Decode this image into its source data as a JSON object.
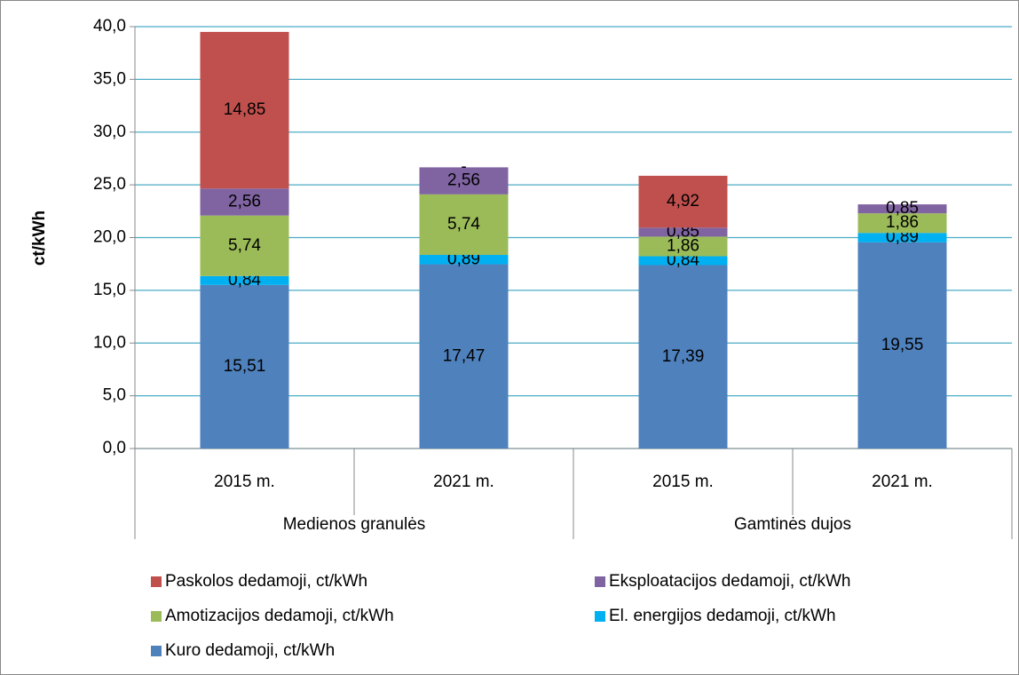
{
  "chart_data": {
    "type": "stacked_bar",
    "y_label": "ct/kWh",
    "categories": [
      "2015 m.",
      "2021 m.",
      "2015 m.",
      "2021 m."
    ],
    "groups": [
      "Medienos granulės",
      "Gamtinės dujos"
    ],
    "series": [
      {
        "name": "Kuro dedamoji, ct/kWh",
        "color": "#4f81bd",
        "values": [
          15.51,
          17.47,
          17.39,
          19.55
        ],
        "value_labels": [
          "15,51",
          "17,47",
          "17,39",
          "19,55"
        ]
      },
      {
        "name": "El. energijos dedamoji, ct/kWh",
        "color": "#00b0f0",
        "values": [
          0.84,
          0.89,
          0.84,
          0.89
        ],
        "value_labels": [
          "0,84",
          "0,89",
          "0,84",
          "0,89"
        ]
      },
      {
        "name": "Amotizacijos dedamoji, ct/kWh",
        "color": "#9bbb59",
        "values": [
          5.74,
          5.74,
          1.86,
          1.86
        ],
        "value_labels": [
          "5,74",
          "5,74",
          "1,86",
          "1,86"
        ]
      },
      {
        "name": "Eksploatacijos dedamoji, ct/kWh",
        "color": "#8064a2",
        "values": [
          2.56,
          2.56,
          0.85,
          0.85
        ],
        "value_labels": [
          "2,56",
          "2,56",
          "0,85",
          "0,85"
        ]
      },
      {
        "name": "Paskolos dedamoji, ct/kWh",
        "color": "#c0504d",
        "values": [
          14.85,
          0,
          4.92,
          null
        ],
        "value_labels": [
          "14,85",
          "-",
          "4,92",
          null
        ]
      }
    ],
    "legend_order": [
      4,
      3,
      2,
      1,
      0
    ],
    "ylim": [
      0,
      40
    ],
    "yticks": [
      {
        "value": 0,
        "label": "0,0"
      },
      {
        "value": 5,
        "label": "5,0"
      },
      {
        "value": 10,
        "label": "10,0"
      },
      {
        "value": 15,
        "label": "15,0"
      },
      {
        "value": 20,
        "label": "20,0"
      },
      {
        "value": 25,
        "label": "25,0"
      },
      {
        "value": 30,
        "label": "30,0"
      },
      {
        "value": 35,
        "label": "35,0"
      },
      {
        "value": 40,
        "label": "40,0"
      }
    ],
    "grid": true
  }
}
